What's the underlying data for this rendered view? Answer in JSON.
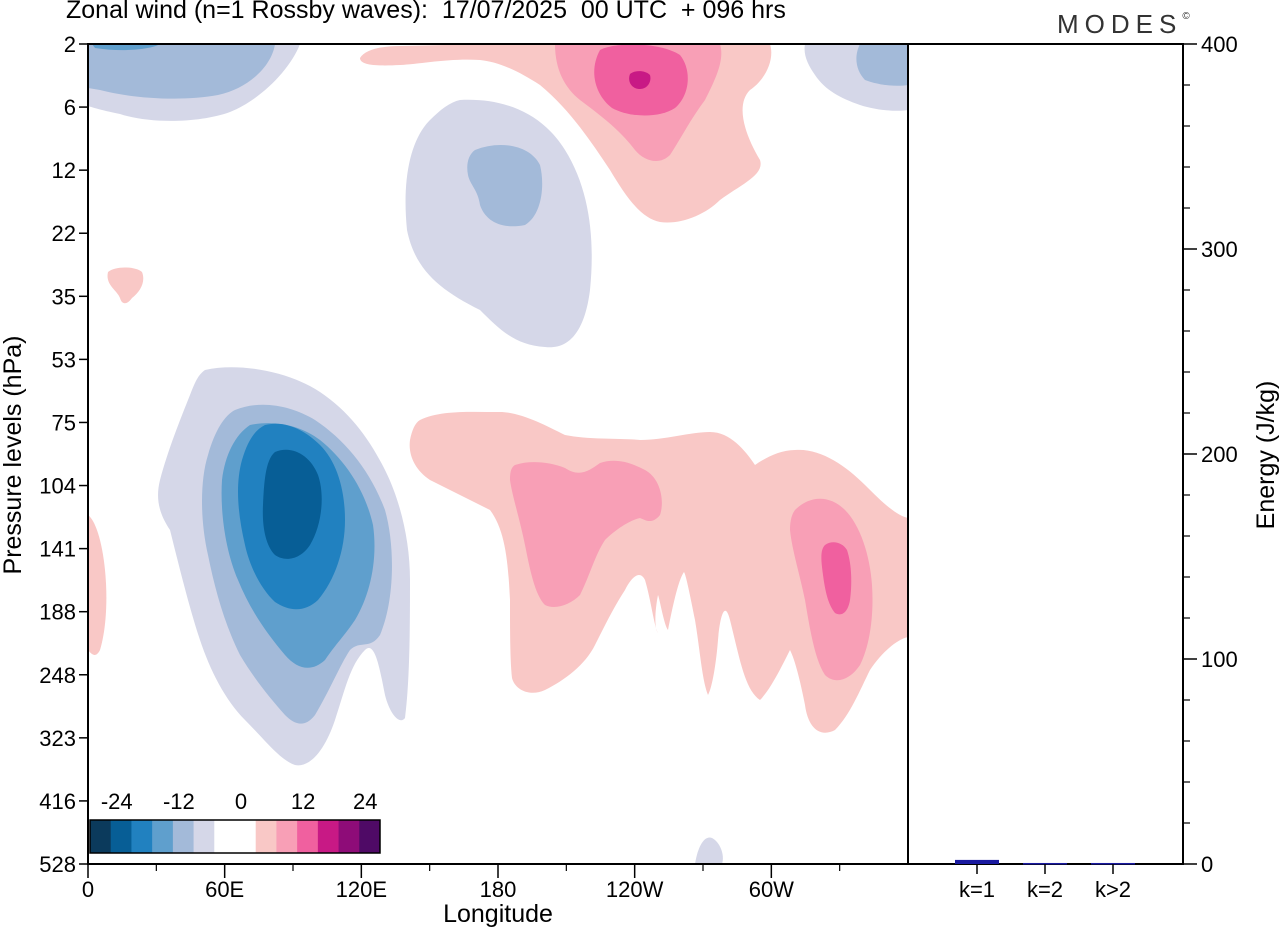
{
  "header": {
    "title": "Zonal wind (n=1 Rossby waves):  17/07/2025  00 UTC  + 096 hrs",
    "brand": "MODES",
    "brand_mark": "©"
  },
  "chart_data": [
    {
      "type": "heatmap",
      "xlabel": "Longitude",
      "ylabel": "Pressure levels (hPa)",
      "x_tick_labels": [
        "0",
        "60E",
        "120E",
        "180",
        "120W",
        "60W"
      ],
      "x_tick_values_deg_east": [
        0,
        60,
        120,
        180,
        240,
        300
      ],
      "y_tick_labels": [
        "2",
        "6",
        "12",
        "22",
        "35",
        "53",
        "75",
        "104",
        "141",
        "188",
        "248",
        "323",
        "416",
        "528"
      ],
      "colorbar": {
        "labels": [
          "-24",
          "-12",
          "0",
          "12",
          "24"
        ],
        "colors": [
          "#0b3a5c",
          "#075e96",
          "#2181c0",
          "#5f9fcd",
          "#a3bad9",
          "#d5d7e8",
          "#ffffff",
          "#ffffff",
          "#f9c8c6",
          "#f89fb6",
          "#f0609f",
          "#c81985",
          "#8e0c78",
          "#4f0a66"
        ]
      },
      "features": [
        {
          "name": "negative anomaly top-left (2-6 hPa, near 0-60E)",
          "peak": "-14 to -18"
        },
        {
          "name": "negative anomaly 6-35 hPa near 180",
          "peak": "-12"
        },
        {
          "name": "positive anomaly 2-12 hPa near 120W",
          "peak": "24"
        },
        {
          "name": "negative anomaly 53-416 hPa near 90E",
          "peak": "-24"
        },
        {
          "name": "positive anomaly 75-323 hPa, 180 to 360",
          "peak": "18-21"
        },
        {
          "name": "negative anomaly top-right (2-6 hPa, near 330E)",
          "peak": "-12"
        }
      ]
    },
    {
      "type": "bar",
      "categories": [
        "k=1",
        "k=2",
        "k>2"
      ],
      "values": [
        2,
        0.5,
        0.5
      ],
      "ylabel": "Energy (J/kg)",
      "ylim": [
        0,
        400
      ],
      "y_tick_labels": [
        "0",
        "100",
        "200",
        "300",
        "400"
      ],
      "bar_color": "#1a1aa0"
    }
  ]
}
